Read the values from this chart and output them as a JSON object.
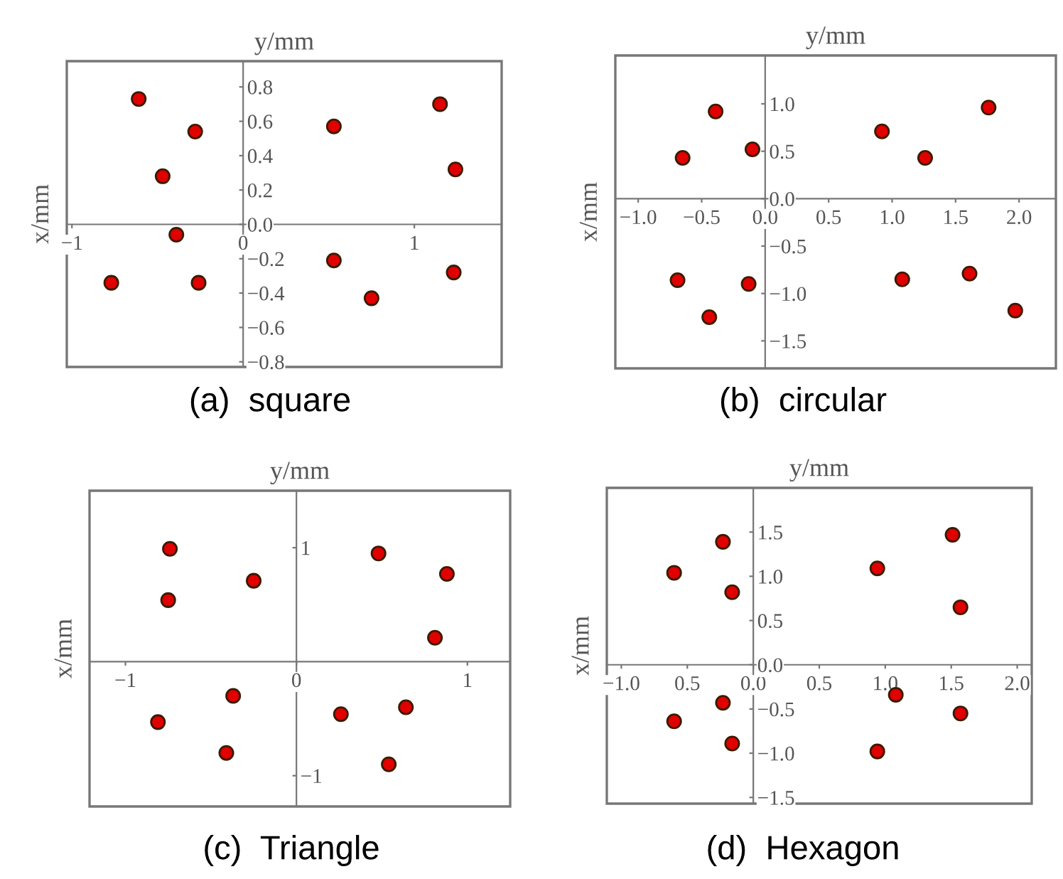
{
  "chart_data": [
    {
      "type": "scatter",
      "xlabel": "y/mm",
      "ylabel": "x/mm",
      "annotations": [
        "(a)  square"
      ],
      "marker": "circle",
      "grid": false,
      "xlim": [
        -1.03,
        1.51
      ],
      "ylim": [
        -0.83,
        0.95
      ],
      "xticks": [
        {
          "value": -1,
          "label": "−1"
        },
        0,
        1
      ],
      "yticks": [
        0.8,
        0.6,
        0.4,
        0.2,
        {
          "value": 0,
          "label": "0.0"
        },
        {
          "value": -0.2,
          "label": "−0.2"
        },
        {
          "value": -0.4,
          "label": "−0.4"
        },
        {
          "value": -0.6,
          "label": "−0.6"
        },
        {
          "value": -0.8,
          "label": "−0.8"
        }
      ],
      "series": [
        {
          "color": "#e00000",
          "x": [
            -0.61,
            -0.28,
            -0.47,
            -0.39,
            -0.77,
            -0.26,
            0.53,
            1.15,
            1.24,
            0.53,
            0.75,
            1.23
          ],
          "values": [
            0.73,
            0.54,
            0.28,
            -0.06,
            -0.34,
            -0.34,
            0.57,
            0.7,
            0.32,
            -0.21,
            -0.43,
            -0.28
          ]
        }
      ]
    },
    {
      "type": "scatter",
      "xlabel": "y/mm",
      "ylabel": "x/mm",
      "annotations": [
        "(b)  circular"
      ],
      "marker": "circle",
      "grid": false,
      "xlim": [
        -1.18,
        2.29
      ],
      "ylim": [
        -1.79,
        1.51
      ],
      "xticks": [
        {
          "value": -1,
          "label": "−1.0"
        },
        {
          "value": -0.5,
          "label": "−0.5"
        },
        {
          "value": 0,
          "label": "0.0"
        },
        0.5,
        {
          "value": 1,
          "label": "1.0"
        },
        1.5,
        {
          "value": 2,
          "label": "2.0"
        }
      ],
      "yticks": [
        {
          "value": 1,
          "label": "1.0"
        },
        0.5,
        {
          "value": 0,
          "label": "0.0"
        },
        {
          "value": -0.5,
          "label": "−0.5"
        },
        {
          "value": -1,
          "label": "−1.0"
        },
        {
          "value": -1.5,
          "label": "−1.5"
        }
      ],
      "series": [
        {
          "color": "#e00000",
          "x": [
            -0.65,
            -0.39,
            -0.1,
            0.92,
            1.26,
            1.76,
            -0.69,
            -0.44,
            -0.13,
            1.08,
            1.61,
            1.97
          ],
          "values": [
            0.43,
            0.92,
            0.52,
            0.71,
            0.43,
            0.96,
            -0.86,
            -1.25,
            -0.9,
            -0.85,
            -0.79,
            -1.18
          ]
        }
      ]
    },
    {
      "type": "scatter",
      "xlabel": "y/mm",
      "ylabel": "x/mm",
      "annotations": [
        "(c)  Triangle"
      ],
      "marker": "circle",
      "grid": false,
      "xlim": [
        -1.21,
        1.25
      ],
      "ylim": [
        -1.27,
        1.5
      ],
      "xticks": [
        {
          "value": -1,
          "label": "−1"
        },
        0,
        1
      ],
      "yticks": [
        1,
        {
          "value": -1,
          "label": "−1"
        }
      ],
      "series": [
        {
          "color": "#e00000",
          "x": [
            -0.74,
            -0.75,
            -0.25,
            0.48,
            0.88,
            0.81,
            -0.37,
            -0.81,
            -0.41,
            0.26,
            0.64,
            0.54
          ],
          "values": [
            0.99,
            0.54,
            0.71,
            0.95,
            0.77,
            0.21,
            -0.3,
            -0.53,
            -0.8,
            -0.46,
            -0.4,
            -0.9
          ]
        }
      ]
    },
    {
      "type": "scatter",
      "xlabel": "y/mm",
      "ylabel": "x/mm",
      "annotations": [
        "(d)  Hexagon"
      ],
      "marker": "circle",
      "grid": false,
      "xlim": [
        -1.11,
        2.11
      ],
      "ylim": [
        -1.57,
        2.0
      ],
      "xticks": [
        {
          "value": -1,
          "label": "−1.0"
        },
        {
          "value": -0.5,
          "label": "0.5"
        },
        {
          "value": 0,
          "label": "0.0"
        },
        0.5,
        {
          "value": 1,
          "label": "1.0"
        },
        1.5,
        {
          "value": 2,
          "label": "2.0"
        }
      ],
      "yticks": [
        1.5,
        {
          "value": 1,
          "label": "1.0"
        },
        0.5,
        {
          "value": 0,
          "label": "0.0"
        },
        {
          "value": -0.5,
          "label": "−0.5"
        },
        {
          "value": -1,
          "label": "−1.0"
        },
        {
          "value": -1.5,
          "label": "−1.5"
        }
      ],
      "series": [
        {
          "color": "#e00000",
          "x": [
            -0.6,
            -0.23,
            -0.16,
            0.94,
            1.51,
            1.57,
            -0.6,
            -0.23,
            -0.16,
            1.08,
            1.57,
            0.94
          ],
          "values": [
            1.04,
            1.39,
            0.82,
            1.09,
            1.47,
            0.65,
            -0.64,
            -0.43,
            -0.89,
            -0.34,
            -0.55,
            -0.98
          ]
        }
      ]
    }
  ]
}
